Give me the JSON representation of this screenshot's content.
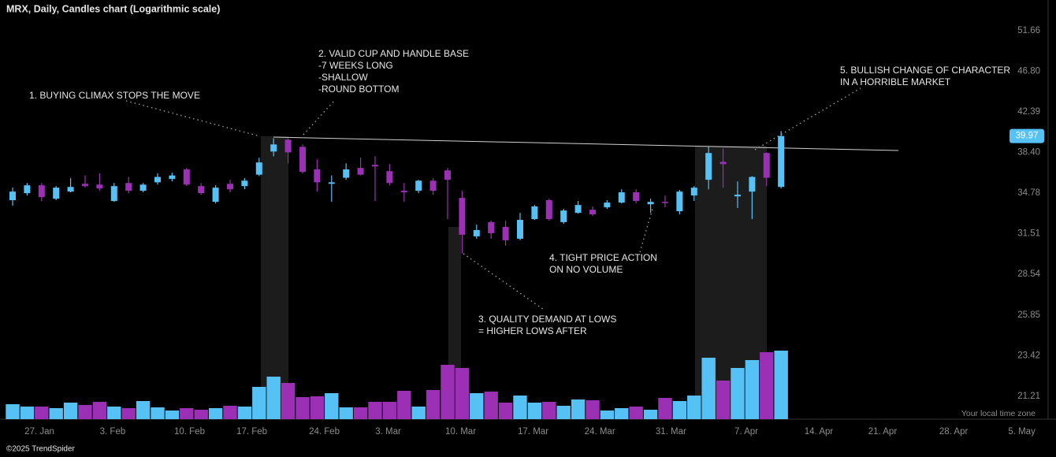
{
  "chart_data": {
    "type": "candlestick",
    "title": "MRX, Daily, Candles chart (Logarithmic scale)",
    "log_scale": true,
    "grid": false,
    "up_color": "#56c1f5",
    "down_color": "#9b30b5",
    "ylim": [
      20.06,
      55.66
    ],
    "yticks": [
      {
        "value": 21.21,
        "label": "21.21"
      },
      {
        "value": 23.42,
        "label": "23.42"
      },
      {
        "value": 25.85,
        "label": "25.85"
      },
      {
        "value": 28.54,
        "label": "28.54"
      },
      {
        "value": 31.51,
        "label": "31.51"
      },
      {
        "value": 34.78,
        "label": "34.78"
      },
      {
        "value": 38.4,
        "label": "38.40"
      },
      {
        "value": 42.39,
        "label": "42.39"
      },
      {
        "value": 46.8,
        "label": "46.80"
      },
      {
        "value": 51.66,
        "label": "51.66"
      }
    ],
    "xlim": [
      -0.87,
      71.96
    ],
    "xticks": [
      {
        "value": 1.85,
        "label": "27. Jan"
      },
      {
        "value": 6.9,
        "label": "3. Feb"
      },
      {
        "value": 12.2,
        "label": "10. Feb"
      },
      {
        "value": 16.5,
        "label": "17. Feb"
      },
      {
        "value": 21.5,
        "label": "24. Feb"
      },
      {
        "value": 25.9,
        "label": "3. Mar"
      },
      {
        "value": 30.9,
        "label": "10. Mar"
      },
      {
        "value": 35.9,
        "label": "17. Mar"
      },
      {
        "value": 40.5,
        "label": "24. Mar"
      },
      {
        "value": 45.4,
        "label": "31. Mar"
      },
      {
        "value": 50.6,
        "label": "7. Apr"
      },
      {
        "value": 55.6,
        "label": "14. Apr"
      },
      {
        "value": 60,
        "label": "21. Apr"
      },
      {
        "value": 64.9,
        "label": "28. Apr"
      },
      {
        "value": 69.6,
        "label": "5. May"
      }
    ],
    "last_price": 39.97,
    "open": [
      34.19,
      34.78,
      35.45,
      34.31,
      34.91,
      35.58,
      35.51,
      34.12,
      35.65,
      34.98,
      35.71,
      36.0,
      36.85,
      35.38,
      34.05,
      35.58,
      35.38,
      36.38,
      38.49,
      39.61,
      38.93,
      36.85,
      35.58,
      36.11,
      36.98,
      37.26,
      36.69,
      34.98,
      34.98,
      35.85,
      36.76,
      34.38,
      31.31,
      32.41,
      32.04,
      31.13,
      32.65,
      34.19,
      32.41,
      33.15,
      33.4,
      33.6,
      33.99,
      34.85,
      33.85,
      34.05,
      33.28,
      34.58,
      35.93,
      37.54,
      34.51,
      34.91,
      38.35,
      35.31
    ],
    "high": [
      35.25,
      35.65,
      35.65,
      35.38,
      36.07,
      36.31,
      36.49,
      35.65,
      36.18,
      35.65,
      36.49,
      36.55,
      36.98,
      35.65,
      35.45,
      35.93,
      36.07,
      37.91,
      39.75,
      39.75,
      39.16,
      37.76,
      36.31,
      37.4,
      37.91,
      38.05,
      37.33,
      35.65,
      35.93,
      36.07,
      36.98,
      34.98,
      32.22,
      32.53,
      32.53,
      33.15,
      33.79,
      34.31,
      33.47,
      34.12,
      33.67,
      34.19,
      35.11,
      35.11,
      34.31,
      34.58,
      35.05,
      35.38,
      38.93,
      38.79,
      35.79,
      36.25,
      38.41,
      40.46
    ],
    "low": [
      33.73,
      34.58,
      34.12,
      34.19,
      34.85,
      35.25,
      34.98,
      34.05,
      34.78,
      34.85,
      35.51,
      35.79,
      35.38,
      34.65,
      33.92,
      34.85,
      35.11,
      36.25,
      38.05,
      37.4,
      36.49,
      34.91,
      34.05,
      35.93,
      36.31,
      34.12,
      35.45,
      34.05,
      34.78,
      34.65,
      32.65,
      30.03,
      31.13,
      31.13,
      30.61,
      31.01,
      32.59,
      32.53,
      32.28,
      33.09,
      32.9,
      33.47,
      33.92,
      33.92,
      33.15,
      33.6,
      33.03,
      34.12,
      35.11,
      35.25,
      33.54,
      32.65,
      35.38,
      35.18
    ],
    "close": [
      34.91,
      35.45,
      34.45,
      35.25,
      35.31,
      35.38,
      35.18,
      35.38,
      34.98,
      35.51,
      36.18,
      36.31,
      35.51,
      34.78,
      35.25,
      35.11,
      35.85,
      37.48,
      39.16,
      38.41,
      36.63,
      35.71,
      35.71,
      36.85,
      36.38,
      37.11,
      35.65,
      34.85,
      35.85,
      34.98,
      35.93,
      31.43,
      31.79,
      31.55,
      31.01,
      32.59,
      33.67,
      32.65,
      33.34,
      33.79,
      33.03,
      33.99,
      34.85,
      34.12,
      34.05,
      33.99,
      34.91,
      35.25,
      38.35,
      37.33,
      34.65,
      36.18,
      36.11,
      39.97
    ],
    "volume": [
      19,
      16,
      16,
      14,
      21,
      18,
      22,
      16,
      14,
      23,
      15,
      11,
      14,
      12,
      14,
      17,
      16,
      41,
      54,
      46,
      28,
      29,
      33,
      15,
      15,
      22,
      22,
      36,
      16,
      37,
      69,
      65,
      33,
      35,
      21,
      30,
      21,
      22,
      17,
      25,
      24,
      11,
      14,
      16,
      12,
      27,
      23,
      30,
      78,
      49,
      65,
      75,
      85,
      87
    ],
    "annotations": [
      {
        "lines": [
          "1. BUYING CLIMAX STOPS THE MOVE"
        ]
      },
      {
        "lines": [
          "2. VALID CUP AND HANDLE BASE",
          "-7 WEEKS LONG",
          "-SHALLOW",
          "-ROUND BOTTOM"
        ]
      },
      {
        "lines": [
          "3. QUALITY DEMAND AT LOWS",
          "= HIGHER LOWS AFTER"
        ]
      },
      {
        "lines": [
          "4. TIGHT PRICE ACTION",
          "ON NO VOLUME"
        ]
      },
      {
        "lines": [
          "5. BULLISH CHANGE OF CHARACTER",
          "IN A HORRIBLE MARKET"
        ]
      }
    ],
    "timezone_note": "Your local time zone",
    "copyright": "©2025 TrendSpider"
  }
}
